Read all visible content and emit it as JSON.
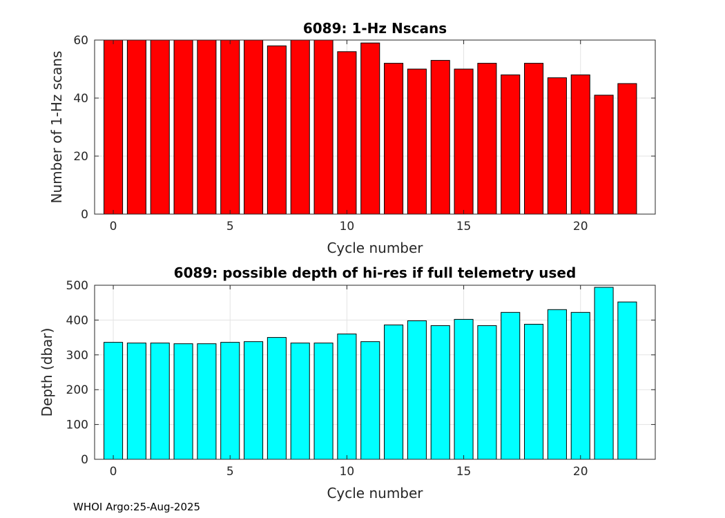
{
  "chart_data": [
    {
      "type": "bar",
      "title": "6089: 1-Hz Nscans",
      "xlabel": "Cycle number",
      "ylabel": "Number of 1-Hz scans",
      "x": [
        0,
        1,
        2,
        3,
        4,
        5,
        6,
        7,
        8,
        9,
        10,
        11,
        12,
        13,
        14,
        15,
        16,
        17,
        18,
        19,
        20,
        21,
        22
      ],
      "values": [
        60,
        60,
        60,
        60,
        60,
        60,
        60,
        58,
        60,
        60,
        56,
        59,
        52,
        50,
        53,
        50,
        52,
        48,
        52,
        47,
        48,
        41,
        45
      ],
      "xlim": [
        -0.8,
        23.2
      ],
      "ylim": [
        0,
        60
      ],
      "xticks": [
        0,
        5,
        10,
        15,
        20
      ],
      "yticks": [
        0,
        20,
        40,
        60
      ],
      "grid": true,
      "bar_color": "#ff0000",
      "edge_color": "#000000"
    },
    {
      "type": "bar",
      "title": "6089: possible depth of hi-res if full telemetry used",
      "xlabel": "Cycle number",
      "ylabel": "Depth (dbar)",
      "x": [
        0,
        1,
        2,
        3,
        4,
        5,
        6,
        7,
        8,
        9,
        10,
        11,
        12,
        13,
        14,
        15,
        16,
        17,
        18,
        19,
        20,
        21,
        22
      ],
      "values": [
        336,
        334,
        334,
        332,
        332,
        336,
        338,
        350,
        334,
        334,
        360,
        338,
        386,
        398,
        384,
        402,
        384,
        422,
        388,
        430,
        422,
        494,
        452
      ],
      "xlim": [
        -0.8,
        23.2
      ],
      "ylim": [
        0,
        500
      ],
      "xticks": [
        0,
        5,
        10,
        15,
        20
      ],
      "yticks": [
        0,
        100,
        200,
        300,
        400,
        500
      ],
      "grid": true,
      "bar_color": "#00ffff",
      "edge_color": "#000000"
    }
  ],
  "footer": "WHOI Argo:25-Aug-2025"
}
